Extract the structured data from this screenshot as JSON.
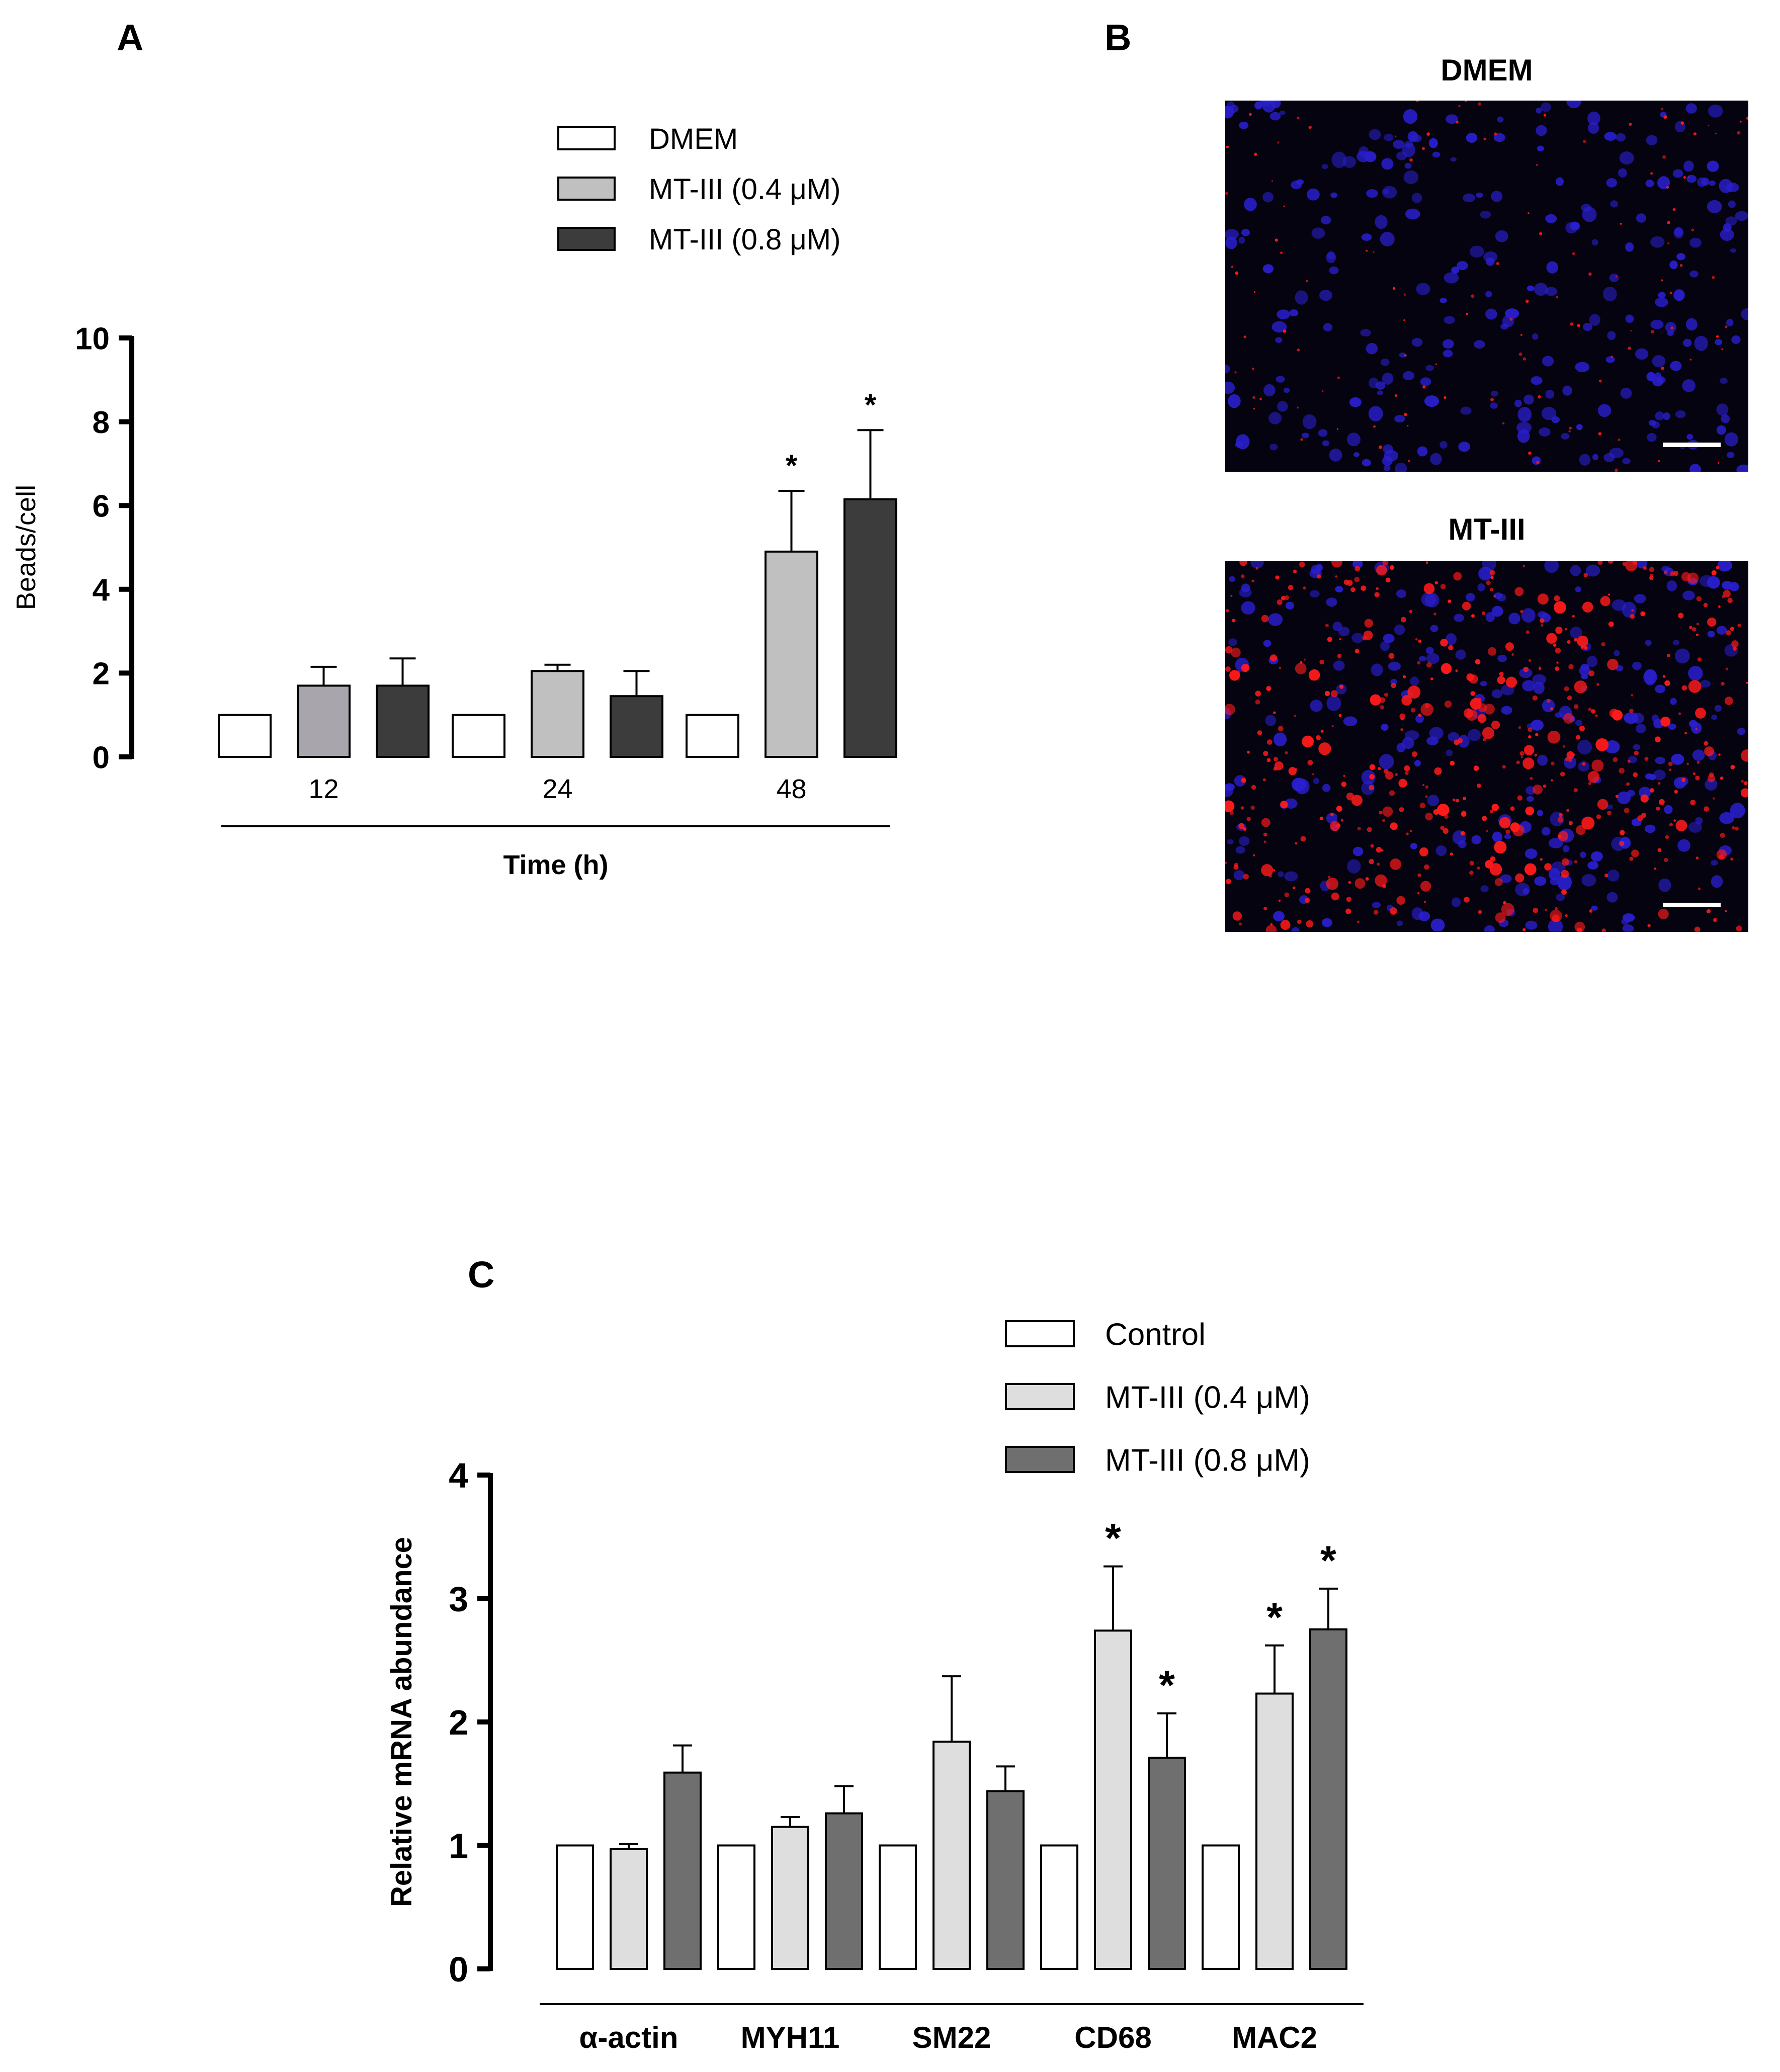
{
  "figure": {
    "panel_letters": [
      "A",
      "B",
      "C"
    ]
  },
  "panel_b": {
    "images": [
      {
        "title": "DMEM",
        "red_density": "low"
      },
      {
        "title": "MT-III",
        "red_density": "high"
      }
    ],
    "colors": {
      "nuclei": "#2a1fd0",
      "beads": "#ff1a1a",
      "background": "#05030f",
      "scale_bar": "#ffffff"
    }
  },
  "chart_data": [
    {
      "panel": "A",
      "type": "bar",
      "title": "",
      "xlabel": "Time (h)",
      "ylabel": "Beads/cell",
      "ylim": [
        0,
        10
      ],
      "yticks": [
        0,
        2,
        4,
        6,
        8,
        10
      ],
      "categories": [
        "12",
        "24",
        "48"
      ],
      "legend_position": "top",
      "series": [
        {
          "name": "DMEM",
          "color": "#ffffff",
          "values": [
            1.0,
            1.0,
            1.0
          ],
          "errors": [
            0,
            0,
            0
          ],
          "significant": [
            false,
            false,
            false
          ]
        },
        {
          "name": "MT-III (0.4 μM)",
          "color": "#c0c0c0",
          "values": [
            1.7,
            2.05,
            4.9
          ],
          "errors": [
            0.45,
            0.15,
            1.45
          ],
          "significant": [
            false,
            false,
            true
          ]
        },
        {
          "name": "MT-III (0.8 μM)",
          "color": "#3c3c3c",
          "values": [
            1.7,
            1.45,
            6.15
          ],
          "errors": [
            0.65,
            0.6,
            1.65
          ],
          "significant": [
            false,
            false,
            true
          ]
        }
      ],
      "bar_overrides": [
        {
          "series": 1,
          "category": 0,
          "color": "#a8a6ac"
        }
      ],
      "significance_marker": "*"
    },
    {
      "panel": "C",
      "type": "bar",
      "title": "",
      "xlabel": "",
      "ylabel": "Relative mRNA abundance",
      "ylim": [
        0,
        4
      ],
      "yticks": [
        0,
        1,
        2,
        3,
        4
      ],
      "categories": [
        "α-actin",
        "MYH11",
        "SM22",
        "CD68",
        "MAC2"
      ],
      "legend_position": "top-right",
      "series": [
        {
          "name": "Control",
          "color": "#ffffff",
          "values": [
            1.0,
            1.0,
            1.0,
            1.0,
            1.0
          ],
          "errors": [
            0,
            0,
            0,
            0,
            0
          ],
          "significant": [
            false,
            false,
            false,
            false,
            false
          ]
        },
        {
          "name": "MT-III (0.4 μM)",
          "color": "#dedede",
          "values": [
            0.97,
            1.15,
            1.84,
            2.74,
            2.23
          ],
          "errors": [
            0.04,
            0.08,
            0.53,
            0.52,
            0.39
          ],
          "significant": [
            false,
            false,
            false,
            true,
            true
          ]
        },
        {
          "name": "MT-III (0.8 μM)",
          "color": "#6f6f6f",
          "values": [
            1.59,
            1.26,
            1.44,
            1.71,
            2.75
          ],
          "errors": [
            0.22,
            0.22,
            0.2,
            0.36,
            0.33
          ],
          "significant": [
            false,
            false,
            false,
            true,
            true
          ]
        }
      ],
      "significance_marker": "*"
    }
  ]
}
